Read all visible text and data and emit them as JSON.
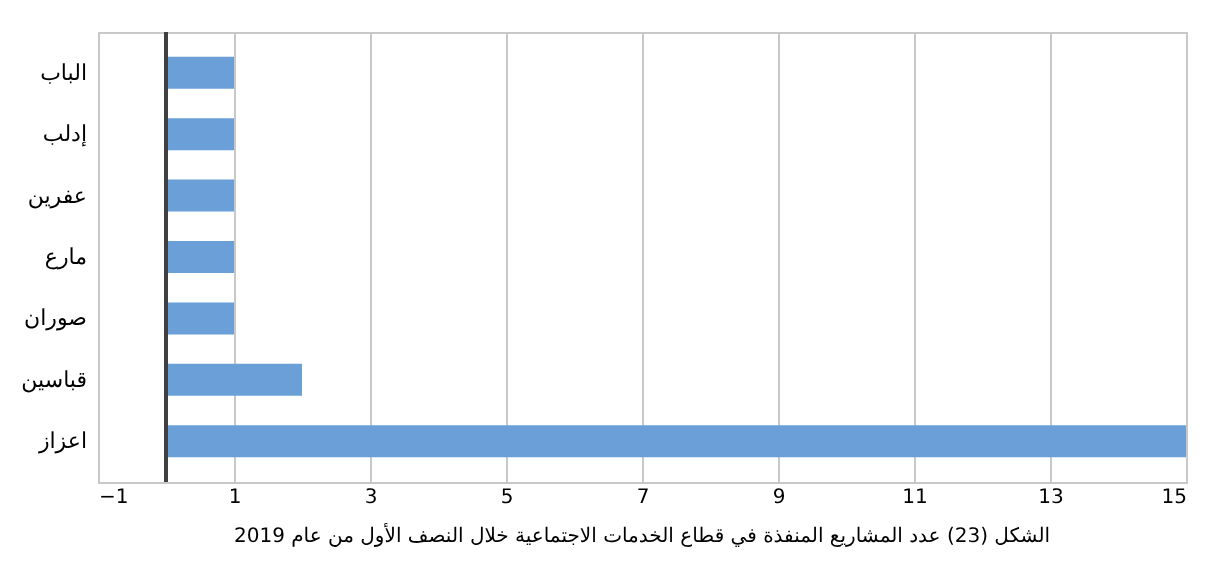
{
  "chart_data": {
    "type": "bar",
    "orientation": "horizontal",
    "title": "الشكل (23) عدد المشاريع المنفذة في قطاع الخدمات الاجتماعية خلال النصف الأول من عام 2019",
    "categories": [
      "الباب",
      "إدلب",
      "عفرين",
      "مارع",
      "صوران",
      "قباسين",
      "اعزاز"
    ],
    "values": [
      1,
      1,
      1,
      1,
      1,
      2,
      15
    ],
    "color": "#6a9fd8",
    "xlim": [
      -1,
      15
    ],
    "xticks": [
      -1,
      1,
      3,
      5,
      7,
      9,
      11,
      13,
      15
    ],
    "grid": "x"
  }
}
